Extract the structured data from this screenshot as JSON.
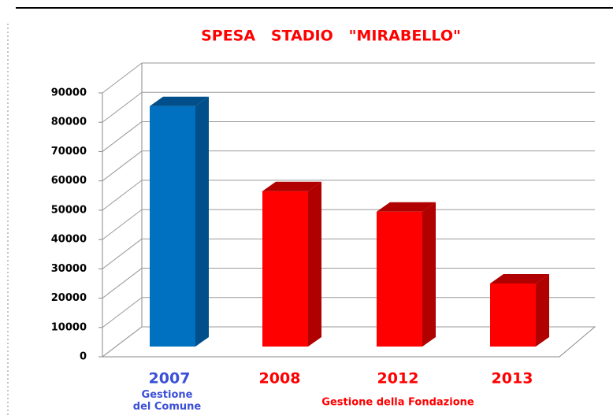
{
  "chart_data": {
    "type": "bar3d",
    "title": "SPESA   STADIO   \"MIRABELLO\"",
    "categories": [
      "2007",
      "2008",
      "2012",
      "2013"
    ],
    "values": [
      82000,
      53000,
      46000,
      21500
    ],
    "colors": [
      "#0070c0",
      "#ff0000",
      "#ff0000",
      "#ff0000"
    ],
    "ylim": [
      0,
      90000
    ],
    "yticks": [
      0,
      10000,
      20000,
      30000,
      40000,
      50000,
      60000,
      70000,
      80000,
      90000
    ],
    "grid": true,
    "annotations": [
      {
        "text": "Gestione\ndel Comune",
        "color": "#3b4fd8"
      },
      {
        "text": "Gestione della Fondazione",
        "color": "#ff0000"
      }
    ]
  }
}
